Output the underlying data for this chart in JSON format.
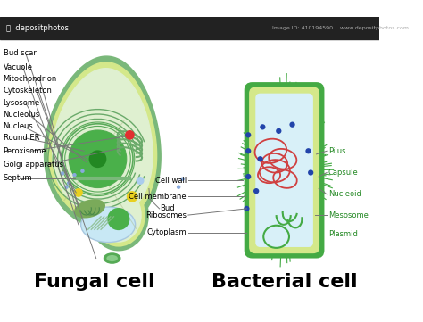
{
  "title_fungal": "Fungal cell",
  "title_bacterial": "Bacterial cell",
  "bg_color": "#ffffff",
  "cell_wall_color": "#7ab87a",
  "cell_yring_color": "#d4e88a",
  "cell_inner_color": "#dff0d0",
  "nucleus_outer_color": "#4ab04a",
  "nucleus_inner_color": "#228822",
  "vacuole_color": "#c8e8f5",
  "vacuole_edge_color": "#a8c8e0",
  "peroxisome_color": "#e03030",
  "lysosome_color": "#e8d020",
  "bud_scar_color": "#55aa55",
  "mitochondria_color": "#7aaa5a",
  "golgi_color": "#6aaa6a",
  "bacterial_outer_color": "#44aa44",
  "bacterial_yring_color": "#d4e88a",
  "bacterial_inner_color": "#d8f0f8",
  "nucleoid_color": "#d04040",
  "plasmid_color": "#44aa44",
  "ribosome_color": "#2244aa",
  "mesosome_color": "#44aa44",
  "footer_bg": "#222222",
  "footer_text": "depositphotos"
}
